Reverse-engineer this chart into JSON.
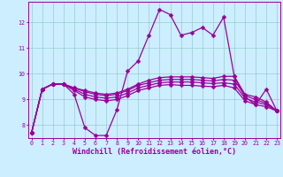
{
  "xlabel": "Windchill (Refroidissement éolien,°C)",
  "background_color": "#cceeff",
  "grid_color": "#99cccc",
  "line_color": "#990099",
  "ylim": [
    7.5,
    12.8
  ],
  "yticks": [
    8,
    9,
    10,
    11,
    12
  ],
  "series": [
    [
      7.7,
      9.4,
      9.6,
      9.6,
      9.2,
      7.9,
      7.6,
      7.6,
      8.6,
      10.1,
      10.5,
      11.5,
      12.5,
      12.3,
      11.5,
      11.6,
      11.8,
      11.5,
      12.2,
      9.9,
      9.1,
      8.8,
      9.4,
      8.55
    ],
    [
      7.7,
      9.4,
      9.6,
      9.6,
      9.45,
      9.35,
      9.25,
      9.2,
      9.25,
      9.4,
      9.6,
      9.75,
      9.85,
      9.88,
      9.88,
      9.88,
      9.85,
      9.82,
      9.9,
      9.9,
      9.2,
      9.1,
      8.9,
      8.55
    ],
    [
      7.7,
      9.4,
      9.6,
      9.6,
      9.45,
      9.3,
      9.2,
      9.15,
      9.2,
      9.35,
      9.55,
      9.65,
      9.75,
      9.78,
      9.78,
      9.78,
      9.75,
      9.72,
      9.78,
      9.75,
      9.15,
      9.0,
      8.85,
      8.55
    ],
    [
      7.7,
      9.4,
      9.6,
      9.6,
      9.4,
      9.2,
      9.1,
      9.05,
      9.1,
      9.25,
      9.45,
      9.55,
      9.65,
      9.68,
      9.68,
      9.68,
      9.65,
      9.62,
      9.65,
      9.6,
      9.05,
      8.9,
      8.8,
      8.55
    ],
    [
      7.7,
      9.4,
      9.6,
      9.6,
      9.35,
      9.1,
      9.0,
      8.95,
      9.0,
      9.15,
      9.35,
      9.45,
      9.55,
      9.58,
      9.55,
      9.55,
      9.52,
      9.5,
      9.55,
      9.45,
      8.95,
      8.8,
      8.72,
      8.55
    ]
  ],
  "marker": "D",
  "markersize": 2.5,
  "linewidth": 0.9,
  "tick_fontsize": 4.8,
  "label_fontsize": 6.0
}
